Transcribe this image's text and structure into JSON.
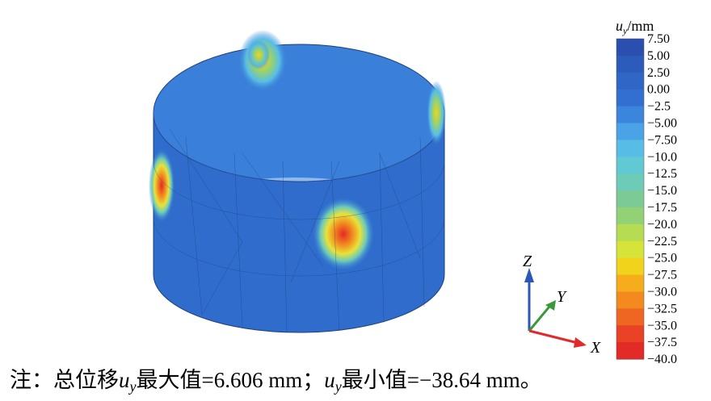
{
  "legend": {
    "title_symbol": "u",
    "title_subscript": "y",
    "title_unit": "/mm",
    "labels": [
      "7.50",
      "5.00",
      "2.50",
      "0.00",
      "−2.5",
      "−5.00",
      "−7.50",
      "−10.0",
      "−12.5",
      "−15.0",
      "−17.5",
      "−20.0",
      "−22.5",
      "−25.0",
      "−27.5",
      "−30.0",
      "−32.5",
      "−35.0",
      "−37.5",
      "−40.0"
    ],
    "colors": [
      "#2a4fae",
      "#2d5bbb",
      "#3066c6",
      "#336fd0",
      "#3b86dc",
      "#4aa3e6",
      "#58bde6",
      "#61c9d4",
      "#6dcbb8",
      "#7ccb96",
      "#93d175",
      "#b5dc52",
      "#d6e43a",
      "#f2d31c",
      "#f6ad1c",
      "#f38a1e",
      "#ee6622",
      "#e94226",
      "#e22a26"
    ]
  },
  "axes": {
    "z": "Z",
    "y": "Y",
    "x": "X"
  },
  "caption": {
    "prefix": "注：总位移",
    "symbol_1": "u",
    "subscript_1": "y",
    "max_text": "最大值=6.606 mm；",
    "symbol_2": "u",
    "subscript_2": "y",
    "min_text": "最小值=−38.64 mm。"
  }
}
